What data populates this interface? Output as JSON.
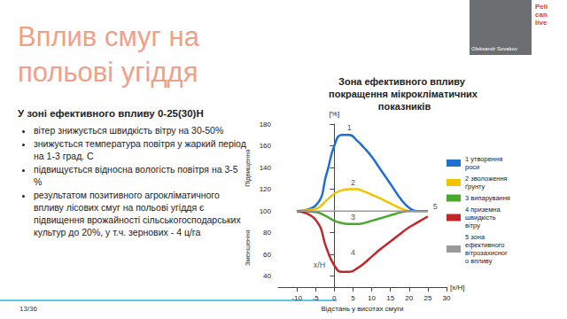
{
  "slide": {
    "title": "Вплив смуг на польові угіддя",
    "subtitle": "У зоні ефективного впливу 0-25(30)Н",
    "bullets": [
      "вітер знижується швидкість вітру на 30-50%",
      "знижується температура повітря у жаркий період на 1-3 град. С",
      "підвищується відносна вологість повітря на 3-5 %",
      "результатом позитивного агрокліматичного впливу лісових смуг на польові угіддя є підвищення врожайності сільськогосподарських культур до 20%, у т.ч. зернових - 4 ц/га"
    ],
    "logo": [
      "Peli",
      "can",
      "live"
    ],
    "speaker": "Oleksandr Sovakov",
    "page": "13/36"
  },
  "chart_data": {
    "type": "line",
    "title": "Зона ефективного впливу покращення мікрокліматичних показників",
    "x_label": "Відстань у висотах смуги",
    "x_unit": "[x/H]",
    "y_label": "[%]",
    "y_up_label": "Підвищення",
    "y_down_label": "Зменшення",
    "x": [
      -10,
      -5,
      -2,
      0,
      2,
      4,
      6,
      8,
      10,
      12,
      15,
      18,
      20,
      22,
      25
    ],
    "series": [
      {
        "name": "1 утворення роси",
        "color": "#1f6fd1",
        "values": [
          100,
          105,
          135,
          160,
          170,
          170,
          165,
          158,
          150,
          140,
          125,
          110,
          103,
          100,
          100
        ]
      },
      {
        "name": "2 зволоження ґрунту",
        "color": "#f2c400",
        "values": [
          100,
          102,
          110,
          116,
          119,
          120,
          120,
          118,
          115,
          112,
          107,
          102,
          100,
          null,
          null
        ]
      },
      {
        "name": "3 випарування",
        "color": "#4aa82e",
        "values": [
          100,
          99,
          95,
          91,
          89,
          88,
          88,
          89,
          91,
          93,
          96,
          99,
          100,
          100,
          null
        ]
      },
      {
        "name": "4 приземна швидкість вітру",
        "color": "#c0282a",
        "values": [
          100,
          92,
          65,
          50,
          44,
          44,
          47,
          52,
          58,
          64,
          72,
          80,
          85,
          89,
          95
        ]
      },
      {
        "name": "5 зона ефективного вітрозахисного впливу",
        "color": "#9a9a9a",
        "values": [
          100,
          100,
          100,
          100,
          100,
          100,
          100,
          100,
          100,
          100,
          100,
          100,
          100,
          100,
          100
        ]
      }
    ],
    "annotations": [
      {
        "text": "1",
        "x": 4,
        "y": 177
      },
      {
        "text": "2",
        "x": 5,
        "y": 126
      },
      {
        "text": "3",
        "x": 5,
        "y": 94
      },
      {
        "text": "4",
        "x": 5,
        "y": 62
      },
      {
        "text": "5",
        "x": 27,
        "y": 104
      },
      {
        "text": "x/H",
        "x": -4,
        "y": 50
      }
    ],
    "xlim": [
      -15,
      30
    ],
    "xticks": [
      -10,
      -5,
      0,
      5,
      10,
      15,
      20,
      25,
      30
    ],
    "ylim": [
      30,
      180
    ],
    "yticks": [
      40,
      60,
      80,
      100,
      120,
      140,
      160,
      180
    ],
    "grid": false,
    "legend": "right"
  }
}
